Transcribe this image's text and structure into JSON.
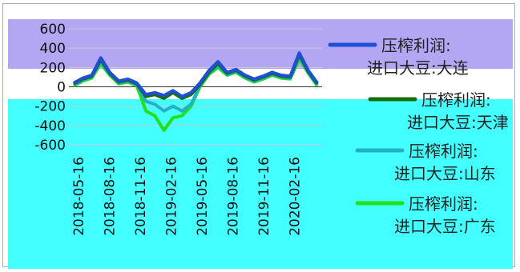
{
  "chart_data": {
    "type": "line",
    "title": "",
    "xlabel": "",
    "ylabel": "",
    "ylim": [
      -600,
      600
    ],
    "y_ticks": [
      "600",
      "400",
      "200",
      "0",
      "-200",
      "-400",
      "-600"
    ],
    "x_ticks": [
      "2018-05-16",
      "2018-08-16",
      "2018-11-16",
      "2019-02-16",
      "2019-05-16",
      "2019-08-16",
      "2019-11-16",
      "2020-02-16"
    ],
    "grid": true,
    "legend_position": "right",
    "series": [
      {
        "name": "压榨利润:进口大豆:大连",
        "color": "#1f4fd6",
        "values": [
          40,
          90,
          120,
          300,
          150,
          60,
          80,
          40,
          -80,
          -60,
          -90,
          -40,
          -100,
          -60,
          40,
          170,
          260,
          150,
          180,
          120,
          80,
          110,
          150,
          120,
          110,
          350,
          170,
          40
        ]
      },
      {
        "name": "压榨利润:进口大豆:天津",
        "color": "#1a6b0a",
        "values": [
          30,
          80,
          110,
          280,
          140,
          50,
          70,
          30,
          -100,
          -80,
          -120,
          -60,
          -120,
          -80,
          20,
          150,
          240,
          140,
          170,
          110,
          70,
          100,
          140,
          110,
          100,
          330,
          160,
          30
        ]
      },
      {
        "name": "压榨利润:进口大豆:山东",
        "color": "#20b2c8",
        "values": [
          20,
          70,
          100,
          260,
          130,
          40,
          60,
          20,
          -150,
          -180,
          -250,
          -200,
          -250,
          -180,
          10,
          140,
          220,
          130,
          160,
          100,
          60,
          90,
          130,
          100,
          90,
          310,
          150,
          20
        ]
      },
      {
        "name": "压榨利润:进口大豆:广东",
        "color": "#22e01a",
        "values": [
          10,
          60,
          90,
          240,
          120,
          30,
          50,
          10,
          -250,
          -300,
          -450,
          -320,
          -300,
          -200,
          0,
          130,
          200,
          120,
          150,
          90,
          50,
          80,
          120,
          90,
          80,
          290,
          140,
          10
        ]
      }
    ]
  }
}
